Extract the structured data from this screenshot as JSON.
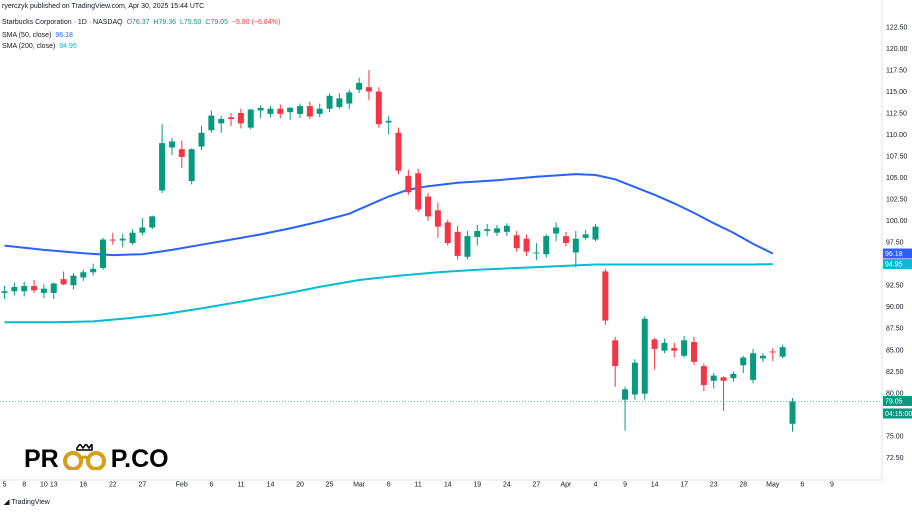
{
  "header": {
    "publisher_line": "ryerczyk published on TradingView.com, Apr 30, 2025 15:44 UTC",
    "symbol": "Starbucks Corporation · 1D · NASDAQ",
    "ohlc": {
      "open": "O76.37",
      "high": "H79.36",
      "low": "L75.50",
      "close": "C79.05",
      "change": "−5.80 (−6.84%)"
    },
    "ma50": {
      "label": "SMA (50, close)",
      "value": "96.18"
    },
    "ma200": {
      "label": "SMA (200, close)",
      "value": "94.95"
    }
  },
  "colors": {
    "up": "#089981",
    "down": "#f23645",
    "ma50": "#2962ff",
    "ma200": "#00bcd4"
  },
  "watermark": {
    "logo_text_left": "PR",
    "logo_text_right": "P.CO",
    "logo_icon": "glasses-crown-icon"
  },
  "footer": {
    "brand": "TradingView",
    "brand_icon": "tv-logo-icon"
  },
  "chart_data": {
    "type": "candlestick",
    "y_axis_ticks": [
      72.5,
      75.0,
      77.5,
      80.0,
      82.5,
      85.0,
      87.5,
      90.0,
      92.5,
      95.0,
      97.5,
      100.0,
      102.5,
      105.0,
      107.5,
      110.0,
      112.5,
      115.0,
      117.5,
      120.0,
      122.5
    ],
    "ylim": [
      71.5,
      124
    ],
    "price_labels": [
      {
        "text": "96.18",
        "value": 96.18,
        "series": "ma50"
      },
      {
        "text": "94.95",
        "value": 94.95,
        "series": "ma200"
      },
      {
        "text": "79.05",
        "value": 79.05,
        "series": "close"
      },
      {
        "text": "04:15:00",
        "value": 77.6,
        "series": "countdown"
      }
    ],
    "x_axis_ticks": [
      {
        "label": "5",
        "i": 0
      },
      {
        "label": "8",
        "i": 2
      },
      {
        "label": "10",
        "i": 4
      },
      {
        "label": "13",
        "i": 5
      },
      {
        "label": "16",
        "i": 8
      },
      {
        "label": "22",
        "i": 11
      },
      {
        "label": "27",
        "i": 14
      },
      {
        "label": "Feb",
        "i": 18
      },
      {
        "label": "6",
        "i": 21
      },
      {
        "label": "11",
        "i": 24
      },
      {
        "label": "14",
        "i": 27
      },
      {
        "label": "20",
        "i": 30
      },
      {
        "label": "25",
        "i": 33
      },
      {
        "label": "Mar",
        "i": 36
      },
      {
        "label": "6",
        "i": 39
      },
      {
        "label": "11",
        "i": 42
      },
      {
        "label": "14",
        "i": 45
      },
      {
        "label": "19",
        "i": 48
      },
      {
        "label": "24",
        "i": 51
      },
      {
        "label": "27",
        "i": 54
      },
      {
        "label": "Apr",
        "i": 57
      },
      {
        "label": "4",
        "i": 60
      },
      {
        "label": "9",
        "i": 63
      },
      {
        "label": "14",
        "i": 66
      },
      {
        "label": "17",
        "i": 69
      },
      {
        "label": "23",
        "i": 72
      },
      {
        "label": "28",
        "i": 75
      },
      {
        "label": "May",
        "i": 78
      },
      {
        "label": "6",
        "i": 81
      },
      {
        "label": "9",
        "i": 84
      }
    ],
    "candles": [
      {
        "o": 91.6,
        "h": 92.4,
        "l": 90.9,
        "c": 91.8
      },
      {
        "o": 91.8,
        "h": 92.8,
        "l": 91.3,
        "c": 92.3
      },
      {
        "o": 91.8,
        "h": 92.9,
        "l": 91.2,
        "c": 92.4
      },
      {
        "o": 92.4,
        "h": 93.1,
        "l": 91.6,
        "c": 91.9
      },
      {
        "o": 91.6,
        "h": 92.6,
        "l": 91.0,
        "c": 92.1
      },
      {
        "o": 91.6,
        "h": 92.8,
        "l": 90.9,
        "c": 92.7
      },
      {
        "o": 93.2,
        "h": 94.1,
        "l": 92.5,
        "c": 92.6
      },
      {
        "o": 92.5,
        "h": 93.9,
        "l": 92.0,
        "c": 93.6
      },
      {
        "o": 93.4,
        "h": 94.3,
        "l": 93.0,
        "c": 94.0
      },
      {
        "o": 94.0,
        "h": 95.0,
        "l": 93.6,
        "c": 94.4
      },
      {
        "o": 94.5,
        "h": 98.0,
        "l": 94.3,
        "c": 97.8
      },
      {
        "o": 97.8,
        "h": 98.6,
        "l": 97.2,
        "c": 97.7
      },
      {
        "o": 97.7,
        "h": 98.5,
        "l": 96.9,
        "c": 97.9
      },
      {
        "o": 97.4,
        "h": 99.0,
        "l": 97.2,
        "c": 98.6
      },
      {
        "o": 98.6,
        "h": 100.3,
        "l": 98.3,
        "c": 99.2
      },
      {
        "o": 99.2,
        "h": 100.6,
        "l": 99.0,
        "c": 100.5
      },
      {
        "o": 103.5,
        "h": 111.2,
        "l": 103.2,
        "c": 109.0
      },
      {
        "o": 108.5,
        "h": 109.6,
        "l": 107.6,
        "c": 109.2
      },
      {
        "o": 108.3,
        "h": 109.3,
        "l": 106.1,
        "c": 107.4
      },
      {
        "o": 104.6,
        "h": 108.4,
        "l": 104.2,
        "c": 108.3
      },
      {
        "o": 108.6,
        "h": 111.0,
        "l": 108.2,
        "c": 110.2
      },
      {
        "o": 110.5,
        "h": 112.8,
        "l": 110.2,
        "c": 112.2
      },
      {
        "o": 111.3,
        "h": 112.2,
        "l": 110.2,
        "c": 111.8
      },
      {
        "o": 112.0,
        "h": 112.5,
        "l": 111.0,
        "c": 111.8
      },
      {
        "o": 112.5,
        "h": 113.0,
        "l": 110.7,
        "c": 111.3
      },
      {
        "o": 110.8,
        "h": 113.0,
        "l": 110.6,
        "c": 112.9
      },
      {
        "o": 112.8,
        "h": 113.4,
        "l": 111.9,
        "c": 113.1
      },
      {
        "o": 112.4,
        "h": 113.3,
        "l": 112.0,
        "c": 113.0
      },
      {
        "o": 113.0,
        "h": 113.5,
        "l": 111.9,
        "c": 112.4
      },
      {
        "o": 112.6,
        "h": 113.2,
        "l": 111.7,
        "c": 113.1
      },
      {
        "o": 112.4,
        "h": 113.6,
        "l": 111.9,
        "c": 113.3
      },
      {
        "o": 113.3,
        "h": 113.8,
        "l": 111.8,
        "c": 112.1
      },
      {
        "o": 112.4,
        "h": 113.6,
        "l": 112.0,
        "c": 113.0
      },
      {
        "o": 113.0,
        "h": 114.8,
        "l": 112.6,
        "c": 114.5
      },
      {
        "o": 113.2,
        "h": 114.8,
        "l": 113.0,
        "c": 114.2
      },
      {
        "o": 113.6,
        "h": 115.2,
        "l": 113.0,
        "c": 114.9
      },
      {
        "o": 115.2,
        "h": 116.6,
        "l": 114.8,
        "c": 116.0
      },
      {
        "o": 115.5,
        "h": 117.5,
        "l": 114.0,
        "c": 115.0
      },
      {
        "o": 115.0,
        "h": 115.5,
        "l": 110.8,
        "c": 111.2
      },
      {
        "o": 111.4,
        "h": 112.2,
        "l": 110.0,
        "c": 111.6
      },
      {
        "o": 110.2,
        "h": 110.8,
        "l": 105.4,
        "c": 105.8
      },
      {
        "o": 105.2,
        "h": 105.9,
        "l": 103.0,
        "c": 103.3
      },
      {
        "o": 105.5,
        "h": 106.0,
        "l": 101.0,
        "c": 101.3
      },
      {
        "o": 102.8,
        "h": 103.2,
        "l": 100.0,
        "c": 100.5
      },
      {
        "o": 101.2,
        "h": 102.1,
        "l": 98.0,
        "c": 99.3
      },
      {
        "o": 99.8,
        "h": 100.1,
        "l": 97.1,
        "c": 97.4
      },
      {
        "o": 98.7,
        "h": 99.4,
        "l": 95.5,
        "c": 95.9
      },
      {
        "o": 95.8,
        "h": 98.8,
        "l": 95.5,
        "c": 98.2
      },
      {
        "o": 98.1,
        "h": 99.5,
        "l": 97.1,
        "c": 98.8
      },
      {
        "o": 98.8,
        "h": 99.6,
        "l": 98.2,
        "c": 99.0
      },
      {
        "o": 98.6,
        "h": 99.5,
        "l": 98.2,
        "c": 99.1
      },
      {
        "o": 98.7,
        "h": 99.7,
        "l": 98.2,
        "c": 99.4
      },
      {
        "o": 98.3,
        "h": 98.8,
        "l": 96.4,
        "c": 96.8
      },
      {
        "o": 97.9,
        "h": 98.4,
        "l": 95.9,
        "c": 96.4
      },
      {
        "o": 96.2,
        "h": 97.4,
        "l": 95.4,
        "c": 96.3
      },
      {
        "o": 96.1,
        "h": 98.4,
        "l": 95.7,
        "c": 98.2
      },
      {
        "o": 98.5,
        "h": 99.8,
        "l": 97.6,
        "c": 99.2
      },
      {
        "o": 98.2,
        "h": 98.7,
        "l": 97.0,
        "c": 97.4
      },
      {
        "o": 96.3,
        "h": 98.8,
        "l": 94.6,
        "c": 97.9
      },
      {
        "o": 98.0,
        "h": 98.9,
        "l": 97.8,
        "c": 98.4
      },
      {
        "o": 97.8,
        "h": 99.6,
        "l": 97.6,
        "c": 99.3
      },
      {
        "o": 94.1,
        "h": 94.4,
        "l": 87.9,
        "c": 88.4
      },
      {
        "o": 86.1,
        "h": 86.5,
        "l": 80.7,
        "c": 83.1
      },
      {
        "o": 79.2,
        "h": 80.7,
        "l": 75.6,
        "c": 80.4
      },
      {
        "o": 79.8,
        "h": 83.9,
        "l": 79.2,
        "c": 83.5
      },
      {
        "o": 79.9,
        "h": 88.9,
        "l": 79.2,
        "c": 88.6
      },
      {
        "o": 86.2,
        "h": 86.4,
        "l": 82.7,
        "c": 85.1
      },
      {
        "o": 84.9,
        "h": 86.3,
        "l": 84.6,
        "c": 85.8
      },
      {
        "o": 85.2,
        "h": 85.8,
        "l": 84.1,
        "c": 84.9
      },
      {
        "o": 84.3,
        "h": 86.6,
        "l": 84.1,
        "c": 86.1
      },
      {
        "o": 85.9,
        "h": 86.5,
        "l": 83.2,
        "c": 83.6
      },
      {
        "o": 83.1,
        "h": 83.4,
        "l": 80.2,
        "c": 80.9
      },
      {
        "o": 81.4,
        "h": 82.3,
        "l": 80.5,
        "c": 82.0
      },
      {
        "o": 81.8,
        "h": 81.9,
        "l": 77.9,
        "c": 81.4
      },
      {
        "o": 81.7,
        "h": 82.5,
        "l": 81.3,
        "c": 82.2
      },
      {
        "o": 83.2,
        "h": 84.3,
        "l": 82.3,
        "c": 84.1
      },
      {
        "o": 81.5,
        "h": 85.1,
        "l": 81.1,
        "c": 84.6
      },
      {
        "o": 84.0,
        "h": 84.6,
        "l": 83.6,
        "c": 84.3
      },
      {
        "o": 84.8,
        "h": 85.2,
        "l": 83.7,
        "c": 84.7
      },
      {
        "o": 84.2,
        "h": 85.6,
        "l": 84.0,
        "c": 85.3
      },
      {
        "o": 76.4,
        "h": 79.4,
        "l": 75.5,
        "c": 79.0
      }
    ],
    "ma50": [
      [
        0,
        97.1
      ],
      [
        4,
        96.6
      ],
      [
        8,
        96.2
      ],
      [
        11,
        96.0
      ],
      [
        14,
        96.1
      ],
      [
        17,
        96.6
      ],
      [
        20,
        97.2
      ],
      [
        23,
        97.8
      ],
      [
        26,
        98.4
      ],
      [
        29,
        99.1
      ],
      [
        32,
        99.9
      ],
      [
        35,
        100.8
      ],
      [
        37,
        101.8
      ],
      [
        39,
        102.8
      ],
      [
        41,
        103.6
      ],
      [
        43,
        104.0
      ],
      [
        46,
        104.4
      ],
      [
        50,
        104.7
      ],
      [
        54,
        105.1
      ],
      [
        58,
        105.4
      ],
      [
        60,
        105.3
      ],
      [
        62,
        104.8
      ],
      [
        64,
        103.9
      ],
      [
        66,
        103.0
      ],
      [
        68,
        102.0
      ],
      [
        70,
        100.9
      ],
      [
        72,
        99.7
      ],
      [
        74,
        98.6
      ],
      [
        76,
        97.3
      ],
      [
        78,
        96.18
      ]
    ],
    "ma200": [
      [
        0,
        88.2
      ],
      [
        5,
        88.2
      ],
      [
        9,
        88.3
      ],
      [
        12,
        88.6
      ],
      [
        16,
        89.1
      ],
      [
        20,
        89.8
      ],
      [
        24,
        90.6
      ],
      [
        28,
        91.4
      ],
      [
        32,
        92.3
      ],
      [
        36,
        93.1
      ],
      [
        40,
        93.6
      ],
      [
        44,
        94.0
      ],
      [
        48,
        94.3
      ],
      [
        52,
        94.5
      ],
      [
        56,
        94.7
      ],
      [
        60,
        94.9
      ],
      [
        64,
        94.9
      ],
      [
        68,
        94.9
      ],
      [
        72,
        94.9
      ],
      [
        76,
        94.9
      ],
      [
        78,
        94.95
      ]
    ]
  }
}
